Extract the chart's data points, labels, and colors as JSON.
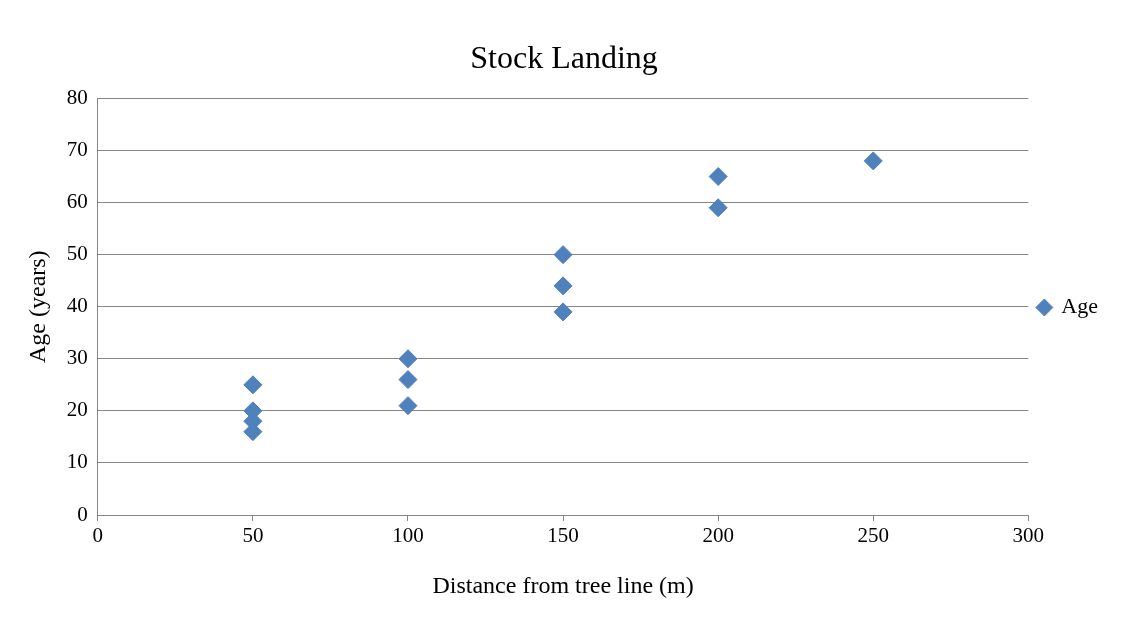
{
  "chart_data": {
    "type": "scatter",
    "title": "Stock Landing",
    "xlabel": "Distance from tree line (m)",
    "ylabel": "Age (years)",
    "series": [
      {
        "name": "Age",
        "color": "#4f81bd",
        "x": [
          50,
          50,
          50,
          50,
          100,
          100,
          100,
          150,
          150,
          150,
          200,
          200,
          250
        ],
        "values": [
          25,
          20,
          18,
          16,
          30,
          26,
          21,
          50,
          44,
          39,
          65,
          59,
          68
        ]
      }
    ],
    "xlim": [
      0,
      300
    ],
    "xticks": [
      0,
      50,
      100,
      150,
      200,
      250,
      300
    ],
    "ylim": [
      0,
      80
    ],
    "yticks": [
      0,
      10,
      20,
      30,
      40,
      50,
      60,
      70,
      80
    ],
    "grid": "y",
    "legend": "right",
    "marker": "diamond"
  }
}
